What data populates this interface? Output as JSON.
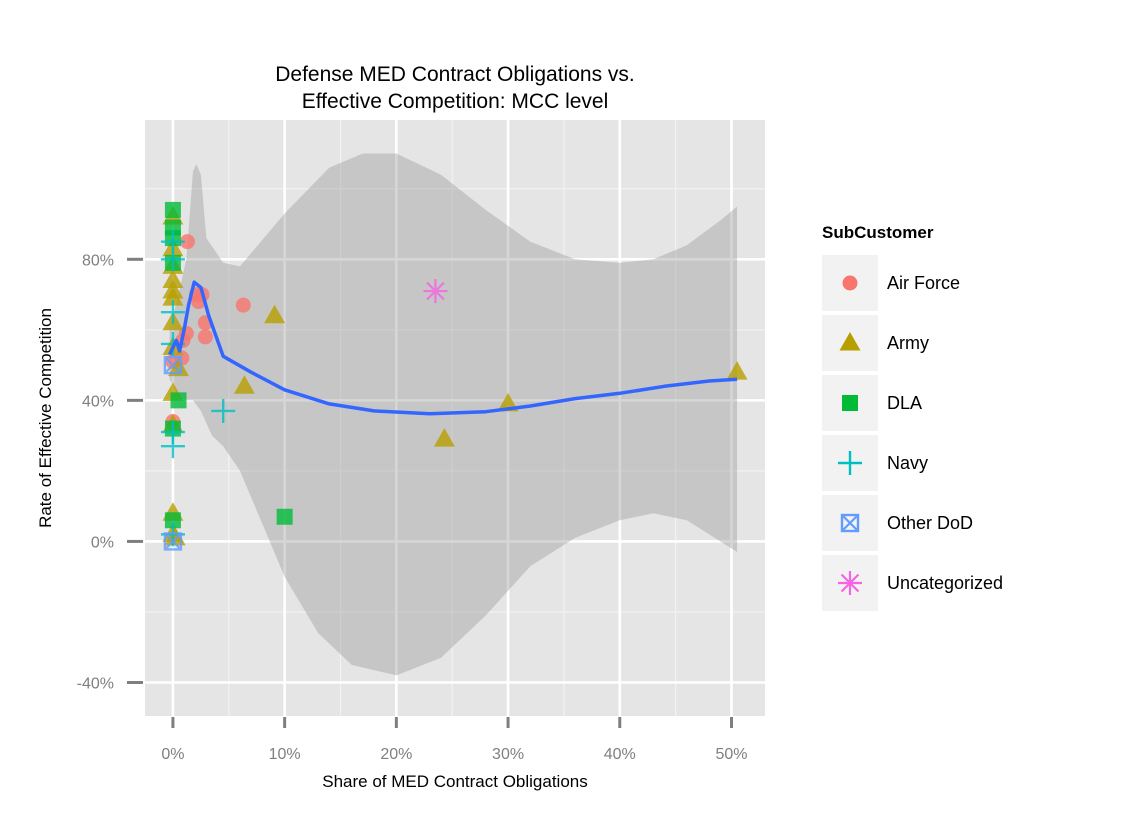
{
  "chart_data": {
    "type": "scatter",
    "title_lines": [
      "Defense MED Contract Obligations vs.",
      "Effective Competition: MCC level"
    ],
    "xlabel": "Share of MED Contract Obligations",
    "ylabel": "Rate of Effective Competition",
    "xlim": [
      -0.025,
      0.53
    ],
    "ylim": [
      -0.495,
      1.195
    ],
    "x_ticks": [
      0,
      0.1,
      0.2,
      0.3,
      0.4,
      0.5
    ],
    "x_tick_labels": [
      "0%",
      "10%",
      "20%",
      "30%",
      "40%",
      "50%"
    ],
    "y_ticks": [
      -0.4,
      0,
      0.4,
      0.8
    ],
    "y_tick_labels": [
      "-40%",
      "0%",
      "40%",
      "80%"
    ],
    "grid": true,
    "legend": {
      "title": "SubCustomer",
      "placement": "right",
      "entries": [
        {
          "label": "Air Force",
          "shape": "circle",
          "color": "#F8766D"
        },
        {
          "label": "Army",
          "shape": "triangle",
          "color": "#B79F00"
        },
        {
          "label": "DLA",
          "shape": "square",
          "color": "#00BA38"
        },
        {
          "label": "Navy",
          "shape": "plus",
          "color": "#00BFC4"
        },
        {
          "label": "Other DoD",
          "shape": "boxx",
          "color": "#619CFF"
        },
        {
          "label": "Uncategorized",
          "shape": "asterisk",
          "color": "#F564E3"
        }
      ]
    },
    "series": [
      {
        "name": "Air Force",
        "points": [
          [
            0.013,
            0.85
          ],
          [
            0.021,
            0.7
          ],
          [
            0.026,
            0.7
          ],
          [
            0.023,
            0.68
          ],
          [
            0.029,
            0.62
          ],
          [
            0.029,
            0.58
          ],
          [
            0.012,
            0.59
          ],
          [
            0.009,
            0.57
          ],
          [
            0.008,
            0.52
          ],
          [
            0.0,
            0.51
          ],
          [
            0.0,
            0.34
          ],
          [
            0.063,
            0.67
          ]
        ]
      },
      {
        "name": "Army",
        "points": [
          [
            0.0,
            0.92
          ],
          [
            0.0,
            0.83
          ],
          [
            0.0,
            0.78
          ],
          [
            0.0,
            0.74
          ],
          [
            0.0,
            0.71
          ],
          [
            0.0,
            0.69
          ],
          [
            0.0,
            0.62
          ],
          [
            0.0,
            0.55
          ],
          [
            0.005,
            0.49
          ],
          [
            0.0,
            0.42
          ],
          [
            0.0,
            0.33
          ],
          [
            0.0,
            0.08
          ],
          [
            0.0,
            0.02
          ],
          [
            0.002,
            0.01
          ],
          [
            0.091,
            0.64
          ],
          [
            0.064,
            0.44
          ],
          [
            0.243,
            0.29
          ],
          [
            0.3,
            0.39
          ],
          [
            0.505,
            0.48
          ]
        ]
      },
      {
        "name": "DLA",
        "points": [
          [
            0.0,
            0.94
          ],
          [
            0.0,
            0.89
          ],
          [
            0.0,
            0.86
          ],
          [
            0.0,
            0.79
          ],
          [
            0.005,
            0.4
          ],
          [
            0.0,
            0.32
          ],
          [
            0.0,
            0.06
          ],
          [
            0.1,
            0.07
          ]
        ]
      },
      {
        "name": "Navy",
        "points": [
          [
            0.0,
            0.85
          ],
          [
            0.0,
            0.8
          ],
          [
            0.0,
            0.65
          ],
          [
            0.0,
            0.56
          ],
          [
            0.0,
            0.31
          ],
          [
            0.0,
            0.27
          ],
          [
            0.045,
            0.37
          ],
          [
            0.0,
            0.02
          ]
        ]
      },
      {
        "name": "Other DoD",
        "points": [
          [
            0.0,
            0.5
          ],
          [
            0.0,
            0.0
          ]
        ]
      },
      {
        "name": "Uncategorized",
        "points": [
          [
            0.235,
            0.71
          ]
        ]
      }
    ],
    "smooth": {
      "color": "#3366FF",
      "fill": "#999999",
      "line": [
        [
          -0.003,
          0.53
        ],
        [
          0.003,
          0.57
        ],
        [
          0.006,
          0.54
        ],
        [
          0.01,
          0.6
        ],
        [
          0.014,
          0.67
        ],
        [
          0.019,
          0.735
        ],
        [
          0.025,
          0.72
        ],
        [
          0.032,
          0.64
        ],
        [
          0.045,
          0.525
        ],
        [
          0.07,
          0.48
        ],
        [
          0.1,
          0.43
        ],
        [
          0.14,
          0.39
        ],
        [
          0.18,
          0.37
        ],
        [
          0.23,
          0.362
        ],
        [
          0.28,
          0.368
        ],
        [
          0.32,
          0.384
        ],
        [
          0.36,
          0.405
        ],
        [
          0.4,
          0.42
        ],
        [
          0.44,
          0.44
        ],
        [
          0.48,
          0.455
        ],
        [
          0.505,
          0.46
        ]
      ],
      "upper": [
        [
          -0.003,
          0.6
        ],
        [
          0.005,
          0.7
        ],
        [
          0.012,
          0.8
        ],
        [
          0.018,
          1.05
        ],
        [
          0.021,
          1.07
        ],
        [
          0.025,
          1.04
        ],
        [
          0.03,
          0.86
        ],
        [
          0.045,
          0.79
        ],
        [
          0.06,
          0.78
        ],
        [
          0.1,
          0.93
        ],
        [
          0.14,
          1.06
        ],
        [
          0.17,
          1.1
        ],
        [
          0.2,
          1.1
        ],
        [
          0.24,
          1.04
        ],
        [
          0.28,
          0.94
        ],
        [
          0.32,
          0.85
        ],
        [
          0.36,
          0.8
        ],
        [
          0.4,
          0.79
        ],
        [
          0.43,
          0.8
        ],
        [
          0.46,
          0.84
        ],
        [
          0.49,
          0.91
        ],
        [
          0.505,
          0.95
        ]
      ],
      "lower": [
        [
          -0.003,
          0.46
        ],
        [
          0.005,
          0.41
        ],
        [
          0.012,
          0.4
        ],
        [
          0.018,
          0.4
        ],
        [
          0.025,
          0.37
        ],
        [
          0.035,
          0.3
        ],
        [
          0.045,
          0.27
        ],
        [
          0.06,
          0.2
        ],
        [
          0.08,
          0.05
        ],
        [
          0.1,
          -0.1
        ],
        [
          0.13,
          -0.26
        ],
        [
          0.16,
          -0.35
        ],
        [
          0.2,
          -0.38
        ],
        [
          0.24,
          -0.33
        ],
        [
          0.28,
          -0.21
        ],
        [
          0.32,
          -0.07
        ],
        [
          0.36,
          0.01
        ],
        [
          0.4,
          0.06
        ],
        [
          0.43,
          0.08
        ],
        [
          0.46,
          0.06
        ],
        [
          0.49,
          0.0
        ],
        [
          0.505,
          -0.03
        ]
      ]
    }
  }
}
